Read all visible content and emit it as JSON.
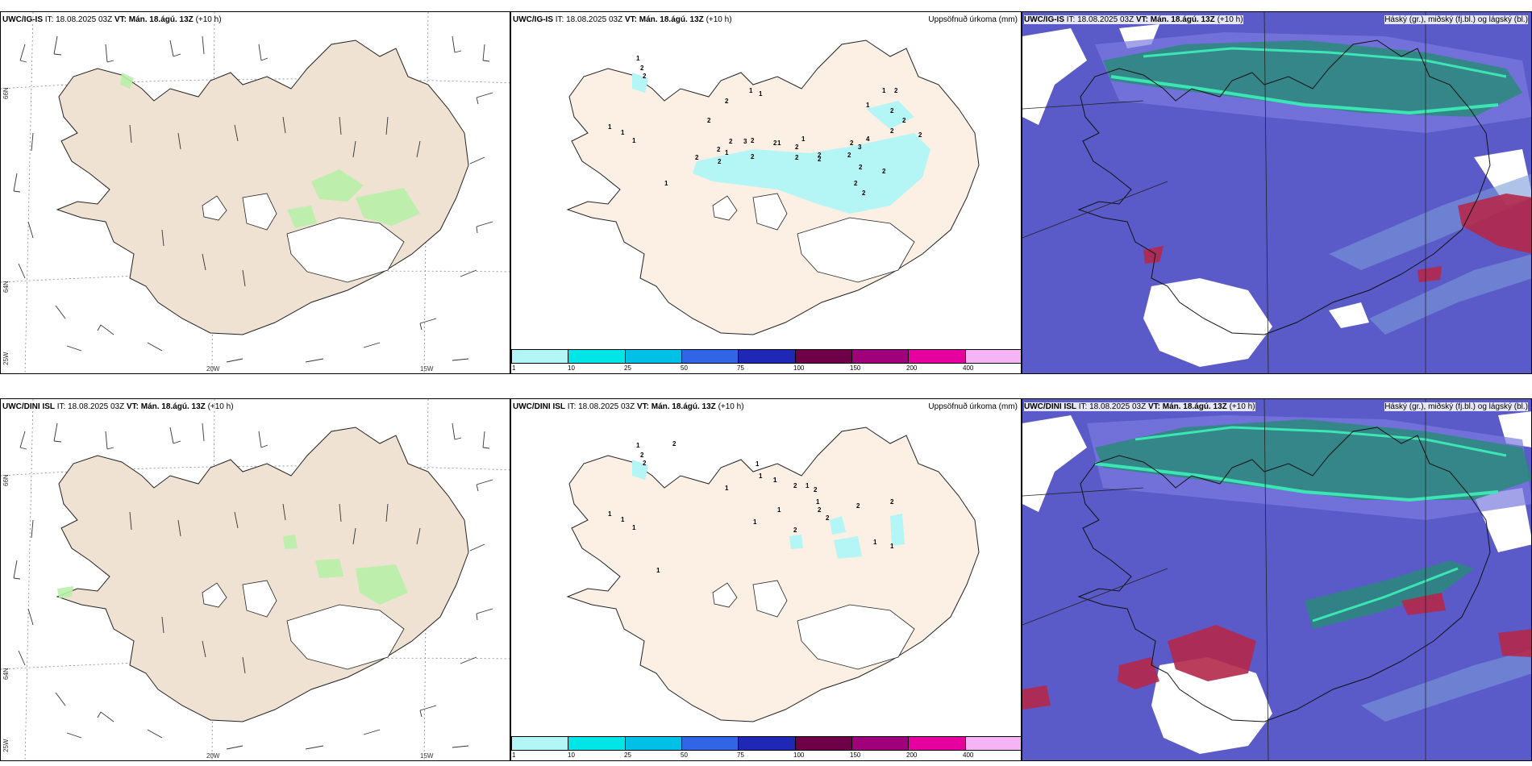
{
  "rows": [
    {
      "model": "UWC/IG-IS",
      "it_label": "IT: 18.08.2025 03Z",
      "vt_label": "VT: Mán. 18.ágú. 13Z",
      "offset": "(+10 h)"
    },
    {
      "model": "UWC/DINI ISL",
      "it_label": "IT: 18.08.2025 03Z",
      "vt_label": "VT: Mán. 18.ágú. 13Z",
      "offset": "(+10 h)"
    }
  ],
  "precip_panel": {
    "title_right": "Uppsöfnuð úrkoma (mm)"
  },
  "cloud_panel": {
    "title_right": "Háský (gr.), miðský (fj.bl.) og lágský (bl.)"
  },
  "wind_panel": {
    "lat_labels": [
      "66N",
      "64N",
      "25W"
    ],
    "lon_labels": [
      "20W",
      "15W"
    ]
  },
  "colorbar": {
    "ticks": [
      "1",
      "10",
      "25",
      "50",
      "75",
      "100",
      "150",
      "200",
      "400"
    ],
    "colors": [
      "#b4f5f5",
      "#00e6e6",
      "#00c0e6",
      "#3264e6",
      "#1e28b4",
      "#6e004a",
      "#a0007a",
      "#e6009e",
      "#f5b4f5"
    ]
  },
  "precip_values_top": [
    "1",
    "2",
    "2",
    "1",
    "1",
    "1",
    "2",
    "2",
    "1",
    "1",
    "2",
    "2",
    "2",
    "1",
    "2",
    "3",
    "2",
    "2",
    "2",
    "2",
    "1",
    "2",
    "2",
    "1",
    "2",
    "3",
    "2",
    "2",
    "2",
    "4",
    "2",
    "2",
    "2",
    "2",
    "2",
    "2",
    "1",
    "2",
    "1",
    "2",
    "1"
  ],
  "precip_values_bottom": [
    "1",
    "2",
    "2",
    "1",
    "1",
    "1",
    "2",
    "1",
    "1",
    "1",
    "1",
    "1",
    "2",
    "1",
    "2",
    "1",
    "2",
    "2",
    "2",
    "1",
    "1",
    "2",
    "2",
    "1",
    "1",
    "1"
  ],
  "colors": {
    "land_wind": "#efe2d2",
    "land_precip": "#fcefe3",
    "cloud_bg": "#5a5ac8",
    "high_cloud": "#2a8a7a",
    "mid_cloud": "#b4284a"
  }
}
